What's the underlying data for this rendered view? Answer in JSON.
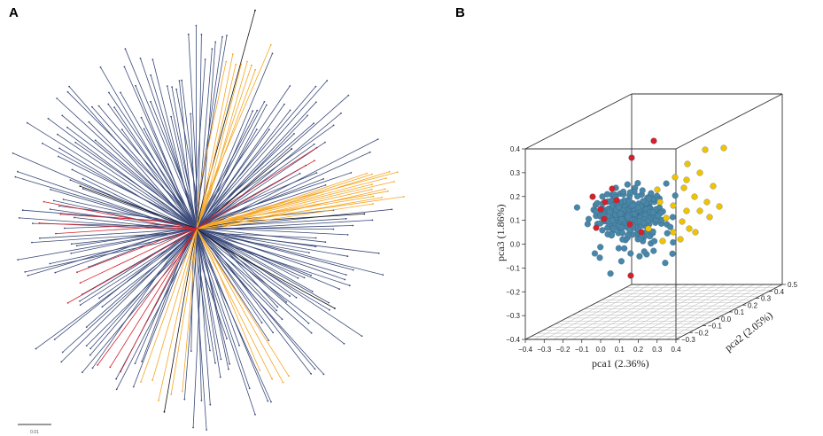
{
  "figure": {
    "panel_a_label": "A",
    "panel_b_label": "B",
    "colors": {
      "tree_default": "#3a4a7a",
      "tree_orange": "#f5a623",
      "tree_red": "#d4202a",
      "point_blue": "#4a86a8",
      "point_red": "#d4202a",
      "point_yellow": "#f2c200",
      "grid": "#b5b5b5",
      "box": "#333333"
    }
  },
  "chart_data": [
    {
      "type": "tree",
      "panel": "A",
      "description_shown": "unrooted phylogenetic tree",
      "groups": [
        {
          "name": "blue",
          "color_key": "tree_default",
          "approx_branches": 230
        },
        {
          "name": "orange",
          "color_key": "tree_orange",
          "approx_branches": 30
        },
        {
          "name": "red",
          "color_key": "tree_red",
          "approx_branches": 12
        }
      ],
      "scale_bar_label": "0.01"
    },
    {
      "type": "scatter3d",
      "panel": "B",
      "xlabel": "pca1 (2.36%)",
      "ylabel": "pca2 (2.05%)",
      "zlabel": "pca3 (1.86%)",
      "x_ticks": [
        "−0.4",
        "−0.3",
        "−0.2",
        "−0.1",
        "0.0",
        "0.1",
        "0.2",
        "0.3",
        "0.4"
      ],
      "y_ticks": [
        "−0.3",
        "−0.2",
        "−0.1",
        "0.0",
        "0.1",
        "0.2",
        "0.3",
        "0.4",
        "0.5"
      ],
      "z_ticks": [
        "−0.4",
        "−0.3",
        "−0.2",
        "−0.1",
        "0.0",
        "0.1",
        "0.2",
        "0.3",
        "0.4"
      ],
      "xlim": [
        -0.4,
        0.4
      ],
      "ylim": [
        -0.4,
        0.5
      ],
      "zlim": [
        -0.4,
        0.4
      ],
      "series": [
        {
          "name": "blue group",
          "color_key": "point_blue",
          "approx_count": 300
        },
        {
          "name": "red group",
          "color_key": "point_red",
          "approx_count": 12
        },
        {
          "name": "yellow group",
          "color_key": "point_yellow",
          "approx_count": 25
        }
      ]
    }
  ]
}
